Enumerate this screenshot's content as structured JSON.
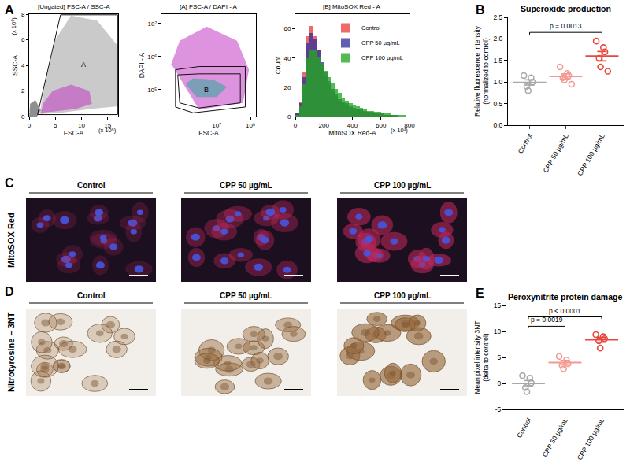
{
  "chart_data": [
    {
      "panel": "A",
      "type": "scatter",
      "title": "[Ungated] FSC-A / SSC-A",
      "x_label": "FSC-A",
      "y_label": "SSC-A",
      "x_multiplier": "(x 10⁶)",
      "y_multiplier": "(x 10⁶)",
      "xlim": [
        0,
        17
      ],
      "xticks": [
        0,
        5,
        10,
        15
      ],
      "ylim": [
        0,
        8
      ],
      "yticks": [
        0,
        2,
        4,
        6,
        8
      ],
      "regions": [
        {
          "color": "#9e9e9e",
          "x": [
            2,
            6,
            12,
            17,
            17,
            13,
            8,
            5,
            3
          ],
          "y": [
            0.2,
            0.3,
            0.6,
            0.8,
            5.5,
            7.5,
            7.9,
            6,
            2.5
          ]
        },
        {
          "color": "#333333",
          "x": [
            0,
            1.5,
            2.2,
            1.2,
            0.2
          ],
          "y": [
            0,
            0,
            0.5,
            1.3,
            1.0
          ]
        },
        {
          "color": "#c23bc2",
          "x": [
            2.2,
            5,
            9,
            12,
            11.5,
            8,
            4.5,
            2.8
          ],
          "y": [
            0.3,
            0.4,
            0.6,
            1.0,
            2.0,
            2.5,
            2.0,
            1.1
          ]
        }
      ],
      "gates": [
        {
          "label": "A",
          "x": [
            1.6,
            6.0,
            16.9,
            16.9
          ],
          "y": [
            0.15,
            7.95,
            7.95,
            0.15
          ]
        }
      ]
    },
    {
      "type": "scatter",
      "log": true,
      "title": "[A] FSC-A / DAPI - A",
      "x_label": "FSC-A",
      "y_label": "DAPI - A",
      "xlim": [
        230000,
        145000000
      ],
      "xticks": [
        {
          "value": 10000000,
          "label": "10⁷"
        },
        {
          "value": 100000000,
          "label": "10⁸"
        }
      ],
      "ylim": [
        15500,
        19000000
      ],
      "yticks": [
        {
          "value": 100000,
          "label": "10⁵"
        },
        {
          "value": 1000000,
          "label": "10⁶"
        },
        {
          "value": 10000000,
          "label": "10⁷"
        }
      ],
      "regions": [
        {
          "color": "#c23bc2",
          "x": [
            450000,
            3000000,
            60000000,
            90000000,
            40000000,
            5000000,
            800000
          ],
          "y": [
            600000,
            25000,
            40000,
            400000,
            3000000,
            8000000,
            3000000
          ]
        },
        {
          "color": "#2aa79b",
          "x": [
            1200000,
            2500000,
            10000000,
            20000000,
            8000000,
            2000000
          ],
          "y": [
            150000,
            60000,
            60000,
            120000,
            200000,
            220000
          ]
        }
      ],
      "gates": [
        {
          "x": [
            600000,
            600000,
            2000000,
            70000000,
            70000000,
            3000000
          ],
          "y": [
            400000,
            30000,
            20000,
            30000,
            500000,
            500000
          ]
        },
        {
          "label": "B",
          "x": [
            700000,
            800000,
            3000000,
            50000000,
            50000000,
            3000000
          ],
          "y": [
            280000,
            40000,
            28000,
            40000,
            300000,
            300000
          ]
        }
      ]
    },
    {
      "type": "histogram",
      "title": "[B] MitoSOX Red - A",
      "x_label": "MitoSOX Red-A",
      "y_label": "Count",
      "x_multiplier": "(x 10³)",
      "xlim": [
        0,
        800
      ],
      "xticks": [
        0,
        200,
        400,
        600,
        800
      ],
      "ylim": [
        0,
        70
      ],
      "yticks": [
        0,
        20,
        40,
        60
      ],
      "legend": "top-right",
      "bins": [
        0,
        25,
        50,
        75,
        100,
        125,
        150,
        175,
        200,
        225,
        250,
        275,
        300,
        325,
        350,
        375,
        400,
        425,
        450,
        475,
        500,
        525,
        550,
        575,
        600,
        625,
        650,
        675,
        700,
        725,
        750,
        775,
        800
      ],
      "series": [
        {
          "name": "Control",
          "color": "#e8413c",
          "values": [
            2,
            10,
            30,
            55,
            62,
            55,
            45,
            36,
            28,
            22,
            18,
            14,
            11,
            9,
            8,
            6,
            5,
            5,
            4,
            3,
            3,
            2,
            2,
            2,
            1,
            1,
            1,
            1,
            0,
            0,
            0,
            0
          ]
        },
        {
          "name": "CPP 50 µg/mL",
          "color": "#34349e",
          "values": [
            2,
            9,
            27,
            50,
            57,
            53,
            45,
            37,
            30,
            24,
            19,
            15,
            12,
            10,
            9,
            7,
            6,
            5,
            5,
            4,
            3,
            3,
            2,
            2,
            2,
            1,
            1,
            1,
            1,
            0,
            0,
            0
          ]
        },
        {
          "name": "CPP 100 µg/mL",
          "color": "#22a822",
          "values": [
            1,
            7,
            22,
            40,
            46,
            45,
            41,
            36,
            31,
            27,
            23,
            19,
            16,
            13,
            11,
            9,
            8,
            7,
            6,
            5,
            4,
            4,
            3,
            3,
            2,
            2,
            2,
            1,
            1,
            1,
            1,
            0
          ]
        }
      ]
    },
    {
      "panel": "B",
      "type": "dot",
      "title": "Superoxide production",
      "y_label": [
        "Relative fluorescence intensity",
        "(normalized to control)"
      ],
      "categories": [
        "Control",
        "CPP 50 µg/mL",
        "CPP 100 µg/mL"
      ],
      "colors": [
        "#a9a9a9",
        "#f29a92",
        "#e8473c"
      ],
      "values": [
        [
          1.15,
          1.1,
          1.0,
          0.9,
          0.8
        ],
        [
          1.35,
          1.2,
          1.15,
          1.1,
          1.05,
          0.95
        ],
        [
          1.95,
          1.8,
          1.7,
          1.55,
          1.35,
          1.25
        ]
      ],
      "mean": [
        0.99,
        1.13,
        1.6
      ],
      "sem": [
        0.06,
        0.06,
        0.11
      ],
      "ylim": [
        0,
        2.5
      ],
      "yticks": [
        {
          "value": 0,
          "label": "0.0"
        },
        {
          "value": 0.5,
          "label": "0.5"
        },
        {
          "value": 1,
          "label": "1.0"
        },
        {
          "value": 1.5,
          "label": "1.5"
        },
        {
          "value": 2,
          "label": "2.0"
        },
        {
          "value": 2.5,
          "label": "2.5"
        }
      ],
      "comparisons": [
        {
          "from": "Control",
          "to": "CPP 100 µg/mL",
          "label": "p = 0.0013"
        }
      ]
    },
    {
      "panel": "E",
      "type": "dot",
      "title": "Peroxynitrite protein damage",
      "y_label": [
        "Mean pixel intensity 3NT",
        "(delta to control)"
      ],
      "categories": [
        "Control",
        "CPP 50 µg/mL",
        "CPP 100 µg/mL"
      ],
      "colors": [
        "#a9a9a9",
        "#f29a92",
        "#e8473c"
      ],
      "values": [
        [
          1.5,
          1.0,
          0.1,
          -0.8,
          -1.6
        ],
        [
          5.2,
          4.5,
          3.8,
          3.5,
          2.8
        ],
        [
          9.4,
          9.0,
          8.6,
          8.2,
          6.8
        ]
      ],
      "mean": [
        0.0,
        4.0,
        8.4
      ],
      "sem": [
        0.55,
        0.4,
        0.45
      ],
      "ylim": [
        -5,
        15
      ],
      "yticks": [
        -5,
        0,
        5,
        10,
        15
      ],
      "comparisons": [
        {
          "from": "Control",
          "to": "CPP 50 µg/mL",
          "label": "p = 0.0019"
        },
        {
          "from": "Control",
          "to": "CPP 100 µg/mL",
          "label": "p < 0.0001"
        }
      ]
    }
  ],
  "image_panels": [
    {
      "panel": "C",
      "row_label": "MitoSOX Red",
      "style": "fluorescence",
      "titles": [
        "Control",
        "CPP 50 µg/mL",
        "CPP 100 µg/mL"
      ]
    },
    {
      "panel": "D",
      "row_label": "Nitrotyrosine – 3NT",
      "style": "brightfield",
      "titles": [
        "Control",
        "CPP 50 µg/mL",
        "CPP 100 µg/mL"
      ]
    }
  ]
}
